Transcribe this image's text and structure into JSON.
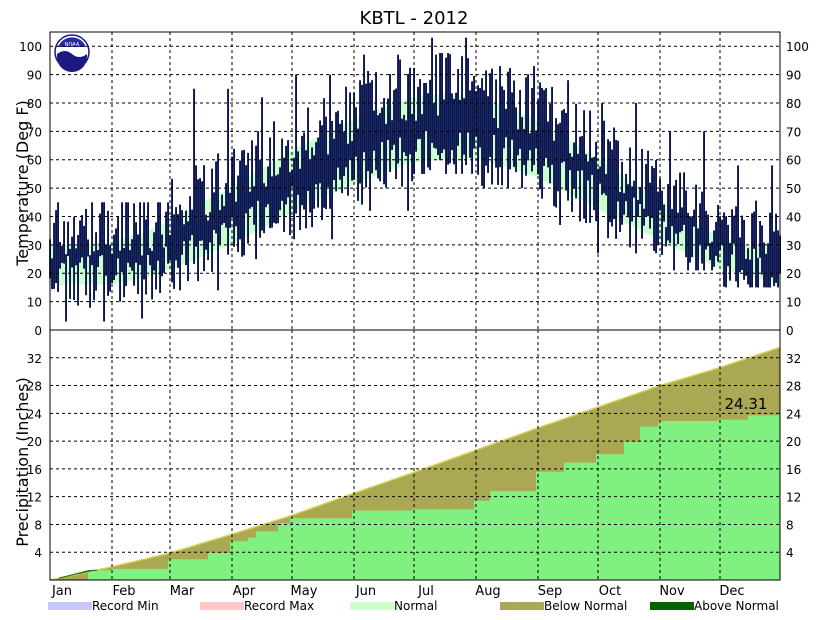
{
  "colors": {
    "record_min": "#c8c8ff",
    "record_max": "#ffc8c8",
    "normal_temp": "#ccffcc",
    "observed_temp": "#0a1450",
    "precip_below_normal": "#aba854",
    "precip_observed": "#80f080",
    "precip_above_normal": "#006400",
    "grid": "#000000"
  },
  "icons": {
    "logo": "noaa-logo"
  },
  "legend": [
    {
      "label": "Record Min",
      "color": "#c8c8ff"
    },
    {
      "label": "Record Max",
      "color": "#ffc8c8"
    },
    {
      "label": "Normal",
      "color": "#ccffcc"
    },
    {
      "label": "Below Normal",
      "color": "#aba854"
    },
    {
      "label": "Above Normal",
      "color": "#006400"
    }
  ],
  "chart_data": [
    {
      "type": "area",
      "title": "KBTL - 2012",
      "xlabel": "",
      "ylabel": "Temperature (Deg F)",
      "ylim": [
        0,
        105
      ],
      "yticks": [
        0,
        10,
        20,
        30,
        40,
        50,
        60,
        70,
        80,
        90,
        100
      ],
      "months": [
        "Jan",
        "Feb",
        "Mar",
        "Apr",
        "May",
        "Jun",
        "Jul",
        "Aug",
        "Sep",
        "Oct",
        "Nov",
        "Dec"
      ],
      "grid": true,
      "normal_band": {
        "days": [
          1,
          15,
          32,
          46,
          60,
          74,
          91,
          105,
          121,
          135,
          152,
          166,
          182,
          196,
          213,
          227,
          244,
          258,
          274,
          288,
          305,
          319,
          335,
          350,
          366
        ],
        "low": [
          16,
          16,
          16,
          18,
          21,
          25,
          30,
          35,
          41,
          46,
          51,
          55,
          59,
          60,
          60,
          58,
          54,
          49,
          43,
          38,
          32,
          27,
          22,
          19,
          16
        ],
        "high": [
          30,
          30,
          31,
          34,
          38,
          44,
          50,
          56,
          63,
          68,
          74,
          78,
          82,
          83,
          82,
          79,
          74,
          68,
          61,
          54,
          46,
          40,
          33,
          30,
          30
        ]
      },
      "observed_monthly": [
        {
          "month": "Jan",
          "low": 3,
          "high": 45
        },
        {
          "month": "Feb",
          "low": 4,
          "high": 45
        },
        {
          "month": "Mar",
          "low": 14,
          "high": 85
        },
        {
          "month": "Apr",
          "low": 25,
          "high": 82
        },
        {
          "month": "May",
          "low": 32,
          "high": 90
        },
        {
          "month": "Jun",
          "low": 42,
          "high": 97
        },
        {
          "month": "Jul",
          "low": 55,
          "high": 103
        },
        {
          "month": "Aug",
          "low": 50,
          "high": 93
        },
        {
          "month": "Sep",
          "low": 37,
          "high": 88
        },
        {
          "month": "Oct",
          "low": 27,
          "high": 80
        },
        {
          "month": "Nov",
          "low": 21,
          "high": 70
        },
        {
          "month": "Dec",
          "low": 15,
          "high": 58
        }
      ]
    },
    {
      "type": "area",
      "title": "",
      "xlabel": "",
      "ylabel": "Precipitation (Inches)",
      "ylim": [
        0,
        36
      ],
      "yticks": [
        4,
        8,
        12,
        16,
        20,
        24,
        28,
        32
      ],
      "months": [
        "Jan",
        "Feb",
        "Mar",
        "Apr",
        "May",
        "Jun",
        "Jul",
        "Aug",
        "Sep",
        "Oct",
        "Nov",
        "Dec"
      ],
      "grid": true,
      "annotation": "24.31",
      "series": [
        {
          "name": "Normal",
          "days": [
            1,
            32,
            60,
            91,
            121,
            152,
            182,
            213,
            244,
            274,
            305,
            335,
            366
          ],
          "values": [
            0,
            1.9,
            3.8,
            6.5,
            9.2,
            12.4,
            15.4,
            18.6,
            21.8,
            24.8,
            27.9,
            30.5,
            33.5
          ]
        },
        {
          "name": "Observed",
          "days": [
            1,
            20,
            32,
            60,
            80,
            91,
            100,
            104,
            115,
            121,
            152,
            182,
            213,
            221,
            244,
            258,
            274,
            288,
            296,
            305,
            335,
            350,
            366
          ],
          "values": [
            0,
            1.4,
            1.6,
            3.0,
            3.9,
            5.6,
            6.1,
            7.0,
            8.2,
            8.9,
            10.0,
            10.2,
            11.4,
            12.8,
            15.6,
            16.9,
            18.1,
            19.9,
            22.1,
            22.9,
            23.1,
            23.7,
            24.31
          ]
        }
      ]
    }
  ]
}
